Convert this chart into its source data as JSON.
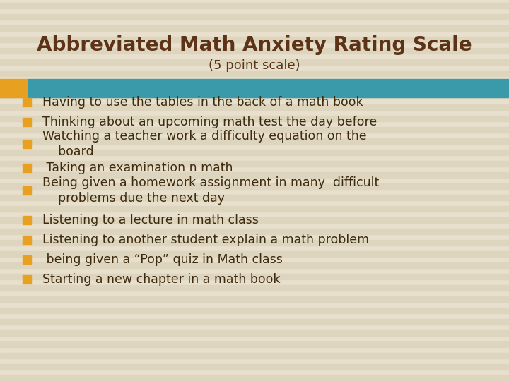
{
  "title": "Abbreviated Math Anxiety Rating Scale",
  "subtitle": "(5 point scale)",
  "background_color": "#e8e0cc",
  "title_color": "#5c3317",
  "subtitle_color": "#5c3317",
  "bar_color_yellow": "#e8a020",
  "bar_color_teal": "#3a9aaa",
  "bullet_color": "#e8a020",
  "text_color": "#3d2b10",
  "stripe_color": "#ddd5be",
  "bullet_items": [
    "Having to use the tables in the back of a math book",
    "Thinking about an upcoming math test the day before",
    "Watching a teacher work a difficulty equation on the\n    board",
    " Taking an examination n math",
    "Being given a homework assignment in many  difficult\n    problems due the next day",
    "Listening to a lecture in math class",
    "Listening to another student explain a math problem",
    " being given a “Pop” quiz in Math class",
    "Starting a new chapter in a math book"
  ],
  "title_fontsize": 20,
  "subtitle_fontsize": 13,
  "bullet_fontsize": 12.5,
  "fig_width": 7.2,
  "fig_height": 5.4,
  "dpi": 100
}
